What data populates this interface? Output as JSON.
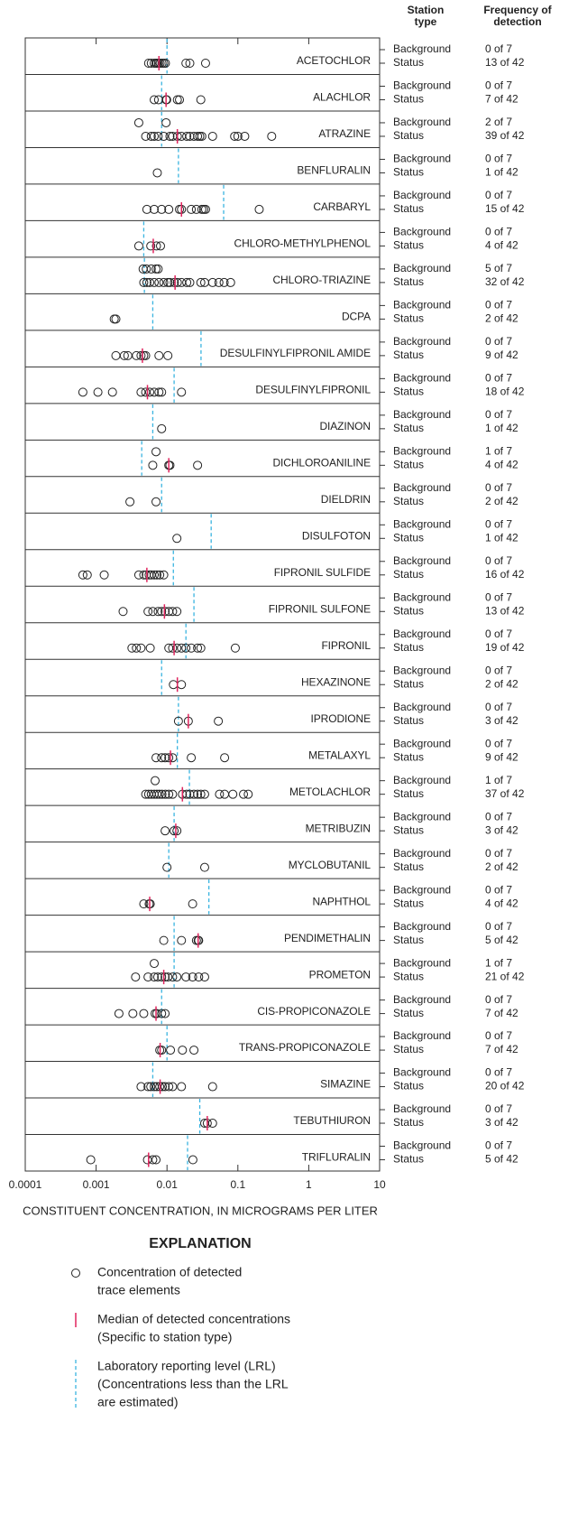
{
  "chart_data": {
    "type": "scatter",
    "xlabel": "CONSTITUENT CONCENTRATION, IN MICROGRAMS PER LITER",
    "xlim": [
      0.0001,
      10
    ],
    "xticks": [
      0.0001,
      0.001,
      0.01,
      0.1,
      1,
      10
    ],
    "log_x": true,
    "station_type_header": [
      "Station",
      "type"
    ],
    "frequency_header": [
      "Frequency of",
      "detection"
    ],
    "station_types": [
      "Background",
      "Status"
    ],
    "point_color": "#222222",
    "median_color": "#e0245e",
    "lrl_color": "#3ab4e0",
    "panels": [
      {
        "name": "ACETOCHLOR",
        "lrl": 0.01,
        "background": {
          "frequency": "0 of 7",
          "values": []
        },
        "status": {
          "frequency": "13 of 42",
          "values": [
            0.0055,
            0.006,
            0.0066,
            0.007,
            0.0072,
            0.0076,
            0.008,
            0.0085,
            0.009,
            0.0095,
            0.0185,
            0.021,
            0.035
          ],
          "median": 0.0077
        }
      },
      {
        "name": "ALACHLOR",
        "lrl": 0.0084,
        "background": {
          "frequency": "0 of 7",
          "values": []
        },
        "status": {
          "frequency": "7 of 42",
          "values": [
            0.0066,
            0.0076,
            0.0097,
            0.0099,
            0.014,
            0.015,
            0.03
          ],
          "median": 0.0097
        }
      },
      {
        "name": "ATRAZINE",
        "lrl": 0.0084,
        "background": {
          "frequency": "2 of 7",
          "values": [
            0.004,
            0.0097
          ]
        },
        "status": {
          "frequency": "39 of 42",
          "values": [
            0.005,
            0.006,
            0.0066,
            0.0075,
            0.009,
            0.011,
            0.012,
            0.014,
            0.016,
            0.019,
            0.021,
            0.024,
            0.027,
            0.029,
            0.031,
            0.044,
            0.09,
            0.1,
            0.125,
            0.3
          ],
          "median": 0.014
        }
      },
      {
        "name": "BENFLURALIN",
        "lrl": 0.0145,
        "background": {
          "frequency": "0 of 7",
          "values": []
        },
        "status": {
          "frequency": "1 of 42",
          "values": [
            0.0073
          ]
        }
      },
      {
        "name": "CARBARYL",
        "lrl": 0.063,
        "background": {
          "frequency": "0 of 7",
          "values": []
        },
        "status": {
          "frequency": "15 of 42",
          "values": [
            0.0052,
            0.0066,
            0.0084,
            0.0106,
            0.015,
            0.016,
            0.022,
            0.026,
            0.031,
            0.033,
            0.035,
            0.2
          ],
          "median": 0.016
        }
      },
      {
        "name": "CHLORO-METHYLPHENOL",
        "lrl": 0.0047,
        "background": {
          "frequency": "0 of 7",
          "values": []
        },
        "status": {
          "frequency": "4 of 42",
          "values": [
            0.004,
            0.0059,
            0.0071,
            0.0081
          ],
          "median": 0.0064
        }
      },
      {
        "name": "CHLORO-TRIAZINE",
        "lrl": 0.0048,
        "background": {
          "frequency": "5 of 7",
          "values": [
            0.0046,
            0.0051,
            0.006,
            0.007,
            0.0075
          ]
        },
        "status": {
          "frequency": "32 of 42",
          "values": [
            0.0047,
            0.0052,
            0.0057,
            0.0066,
            0.0077,
            0.009,
            0.0103,
            0.011,
            0.0127,
            0.014,
            0.016,
            0.019,
            0.021,
            0.03,
            0.034,
            0.044,
            0.054,
            0.064,
            0.079
          ],
          "median": 0.013
        }
      },
      {
        "name": "DCPA",
        "lrl": 0.0063,
        "background": {
          "frequency": "0 of 7",
          "values": []
        },
        "status": {
          "frequency": "2 of 42",
          "values": [
            0.0018,
            0.0019
          ]
        }
      },
      {
        "name": "DESULFINYLFIPRONIL AMIDE",
        "lrl": 0.0302,
        "background": {
          "frequency": "0 of 7",
          "values": []
        },
        "status": {
          "frequency": "9 of 42",
          "values": [
            0.0019,
            0.0025,
            0.0028,
            0.0037,
            0.0043,
            0.0047,
            0.005,
            0.0077,
            0.0103
          ],
          "median": 0.0045
        }
      },
      {
        "name": "DESULFINYLFIPRONIL",
        "lrl": 0.0126,
        "background": {
          "frequency": "0 of 7",
          "values": []
        },
        "status": {
          "frequency": "18 of 42",
          "values": [
            0.00065,
            0.00106,
            0.0017,
            0.0043,
            0.005,
            0.0057,
            0.0066,
            0.0077,
            0.0084,
            0.016
          ],
          "median": 0.0053
        }
      },
      {
        "name": "DIAZINON",
        "lrl": 0.0063,
        "background": {
          "frequency": "0 of 7",
          "values": []
        },
        "status": {
          "frequency": "1 of 42",
          "values": [
            0.0084
          ]
        }
      },
      {
        "name": "DICHLOROANILINE",
        "lrl": 0.0044,
        "background": {
          "frequency": "1 of 7",
          "values": [
            0.007
          ]
        },
        "status": {
          "frequency": "4 of 42",
          "values": [
            0.0063,
            0.0106,
            0.011,
            0.027
          ],
          "median": 0.0106
        }
      },
      {
        "name": "DIELDRIN",
        "lrl": 0.0084,
        "background": {
          "frequency": "0 of 7",
          "values": []
        },
        "status": {
          "frequency": "2 of 42",
          "values": [
            0.003,
            0.007
          ]
        }
      },
      {
        "name": "DISULFOTON",
        "lrl": 0.042,
        "background": {
          "frequency": "0 of 7",
          "values": []
        },
        "status": {
          "frequency": "1 of 42",
          "values": [
            0.0138
          ]
        }
      },
      {
        "name": "FIPRONIL SULFIDE",
        "lrl": 0.0123,
        "background": {
          "frequency": "0 of 7",
          "values": []
        },
        "status": {
          "frequency": "16 of 42",
          "values": [
            0.00065,
            0.00075,
            0.0013,
            0.004,
            0.0047,
            0.0051,
            0.0056,
            0.006,
            0.0066,
            0.0072,
            0.0079,
            0.009
          ],
          "median": 0.0052
        }
      },
      {
        "name": "FIPRONIL SULFONE",
        "lrl": 0.024,
        "background": {
          "frequency": "0 of 7",
          "values": []
        },
        "status": {
          "frequency": "13 of 42",
          "values": [
            0.0024,
            0.0054,
            0.0063,
            0.0075,
            0.0084,
            0.0094,
            0.0106,
            0.012,
            0.0138
          ],
          "median": 0.0092
        }
      },
      {
        "name": "FIPRONIL",
        "lrl": 0.0185,
        "background": {
          "frequency": "0 of 7",
          "values": []
        },
        "status": {
          "frequency": "19 of 42",
          "values": [
            0.0032,
            0.0037,
            0.0043,
            0.0058,
            0.0106,
            0.012,
            0.0138,
            0.016,
            0.0185,
            0.022,
            0.027,
            0.03,
            0.092
          ],
          "median": 0.0126
        }
      },
      {
        "name": "HEXAZINONE",
        "lrl": 0.0084,
        "background": {
          "frequency": "0 of 7",
          "values": []
        },
        "status": {
          "frequency": "2 of 42",
          "values": [
            0.0123,
            0.016
          ],
          "median": 0.014
        }
      },
      {
        "name": "IPRODIONE",
        "lrl": 0.0145,
        "background": {
          "frequency": "0 of 7",
          "values": []
        },
        "status": {
          "frequency": "3 of 42",
          "values": [
            0.0145,
            0.02,
            0.053
          ],
          "median": 0.02
        }
      },
      {
        "name": "METALAXYL",
        "lrl": 0.014,
        "background": {
          "frequency": "0 of 7",
          "values": []
        },
        "status": {
          "frequency": "9 of 42",
          "values": [
            0.007,
            0.0084,
            0.0094,
            0.0106,
            0.012,
            0.022,
            0.065
          ],
          "median": 0.0112
        }
      },
      {
        "name": "METOLACHLOR",
        "lrl": 0.0207,
        "background": {
          "frequency": "1 of 7",
          "values": [
            0.0068
          ]
        },
        "status": {
          "frequency": "37 of 42",
          "values": [
            0.005,
            0.0055,
            0.006,
            0.0066,
            0.0072,
            0.0078,
            0.0085,
            0.0095,
            0.0106,
            0.012,
            0.0165,
            0.019,
            0.021,
            0.024,
            0.027,
            0.03,
            0.034,
            0.055,
            0.065,
            0.085,
            0.12,
            0.14
          ],
          "median": 0.0165
        }
      },
      {
        "name": "METRIBUZIN",
        "lrl": 0.0126,
        "background": {
          "frequency": "0 of 7",
          "values": []
        },
        "status": {
          "frequency": "3 of 42",
          "values": [
            0.0094,
            0.0126,
            0.0138
          ],
          "median": 0.0133
        }
      },
      {
        "name": "MYCLOBUTANIL",
        "lrl": 0.0106,
        "background": {
          "frequency": "0 of 7",
          "values": []
        },
        "status": {
          "frequency": "2 of 42",
          "values": [
            0.01,
            0.034
          ]
        }
      },
      {
        "name": "NAPHTHOL",
        "lrl": 0.039,
        "background": {
          "frequency": "0 of 7",
          "values": []
        },
        "status": {
          "frequency": "4 of 42",
          "values": [
            0.0047,
            0.0056,
            0.0058,
            0.023
          ],
          "median": 0.0057
        }
      },
      {
        "name": "PENDIMETHALIN",
        "lrl": 0.0126,
        "background": {
          "frequency": "0 of 7",
          "values": []
        },
        "status": {
          "frequency": "5 of 42",
          "values": [
            0.009,
            0.016,
            0.026,
            0.0275,
            0.028
          ],
          "median": 0.0275
        }
      },
      {
        "name": "PROMETON",
        "lrl": 0.0126,
        "background": {
          "frequency": "1 of 7",
          "values": [
            0.0066
          ]
        },
        "status": {
          "frequency": "21 of 42",
          "values": [
            0.0036,
            0.0054,
            0.0066,
            0.0074,
            0.0084,
            0.0094,
            0.0103,
            0.012,
            0.0138,
            0.0185,
            0.023,
            0.028,
            0.034
          ],
          "median": 0.009
        }
      },
      {
        "name": "CIS-PROPICONAZOLE",
        "lrl": 0.0084,
        "background": {
          "frequency": "0 of 7",
          "values": []
        },
        "status": {
          "frequency": "7 of 42",
          "values": [
            0.0021,
            0.0033,
            0.0047,
            0.0068,
            0.0072,
            0.0084,
            0.0094
          ],
          "median": 0.007
        }
      },
      {
        "name": "TRANS-PROPICONAZOLE",
        "lrl": 0.01,
        "background": {
          "frequency": "0 of 7",
          "values": []
        },
        "status": {
          "frequency": "7 of 42",
          "values": [
            0.0079,
            0.0084,
            0.0112,
            0.0165,
            0.024
          ],
          "median": 0.008
        }
      },
      {
        "name": "SIMAZINE",
        "lrl": 0.0063,
        "background": {
          "frequency": "0 of 7",
          "values": []
        },
        "status": {
          "frequency": "20 of 42",
          "values": [
            0.0043,
            0.0054,
            0.0059,
            0.0066,
            0.0072,
            0.0079,
            0.0086,
            0.0094,
            0.0106,
            0.012,
            0.016,
            0.044
          ],
          "median": 0.008
        }
      },
      {
        "name": "TEBUTHIURON",
        "lrl": 0.029,
        "background": {
          "frequency": "0 of 7",
          "values": []
        },
        "status": {
          "frequency": "3 of 42",
          "values": [
            0.034,
            0.037,
            0.044
          ],
          "median": 0.037
        }
      },
      {
        "name": "TRIFLURALIN",
        "lrl": 0.0195,
        "background": {
          "frequency": "0 of 7",
          "values": []
        },
        "status": {
          "frequency": "5 of 42",
          "values": [
            0.00084,
            0.0053,
            0.0063,
            0.007,
            0.0232
          ],
          "median": 0.0055
        }
      }
    ],
    "explanation": {
      "title": "EXPLANATION",
      "items": [
        {
          "kind": "point",
          "lines": [
            "Concentration of detected",
            "trace elements"
          ]
        },
        {
          "kind": "median",
          "lines": [
            "Median of detected concentrations",
            "(Specific to station type)"
          ]
        },
        {
          "kind": "lrl",
          "lines": [
            "Laboratory reporting level (LRL)",
            "(Concentrations less than the LRL",
            "are estimated)"
          ]
        }
      ]
    }
  }
}
